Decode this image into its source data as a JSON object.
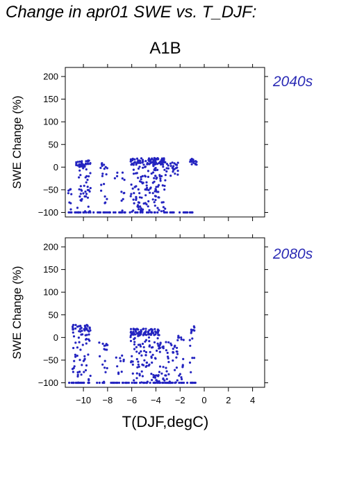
{
  "title": "Change in apr01 SWE vs. T_DJF:",
  "scenario": "A1B",
  "colors": {
    "points": "#2424c0",
    "period_label": "#2b2bb5",
    "axis": "#000000"
  },
  "chart_data": [
    {
      "type": "scatter",
      "panel_label": "2040s",
      "xlabel": "T(DJF,degC)",
      "ylabel": "SWE Change (%)",
      "xlim": [
        -11.5,
        5
      ],
      "ylim": [
        -110,
        220
      ],
      "xticks": [
        -10,
        -8,
        -6,
        -4,
        -2,
        0,
        2,
        4
      ],
      "yticks": [
        -100,
        -50,
        0,
        50,
        100,
        150,
        200
      ],
      "clusters": [
        {
          "x": [
            -11.3,
            -11.0
          ],
          "y": [
            -100,
            -40
          ],
          "n": 8
        },
        {
          "x": [
            -10.6,
            -9.4
          ],
          "y": [
            -100,
            15
          ],
          "n": 70
        },
        {
          "x": [
            -8.6,
            -8.0
          ],
          "y": [
            -100,
            10
          ],
          "n": 18
        },
        {
          "x": [
            -7.4,
            -6.6
          ],
          "y": [
            -100,
            -10
          ],
          "n": 12
        },
        {
          "x": [
            -6.1,
            -4.0
          ],
          "y": [
            -100,
            20
          ],
          "n": 150
        },
        {
          "x": [
            -4.1,
            -3.2
          ],
          "y": [
            -100,
            20
          ],
          "n": 70
        },
        {
          "x": [
            -3.2,
            -2.1
          ],
          "y": [
            -20,
            10
          ],
          "n": 25
        },
        {
          "x": [
            -1.2,
            -0.6
          ],
          "y": [
            5,
            20
          ],
          "n": 14
        }
      ],
      "floor_band": {
        "x": [
          -11.3,
          -0.6
        ],
        "y": -100,
        "n": 70
      }
    },
    {
      "type": "scatter",
      "panel_label": "2080s",
      "xlabel": "T(DJF,degC)",
      "ylabel": "SWE Change (%)",
      "xlim": [
        -11.5,
        5
      ],
      "ylim": [
        -110,
        220
      ],
      "xticks": [
        -10,
        -8,
        -6,
        -4,
        -2,
        0,
        2,
        4
      ],
      "yticks": [
        -100,
        -50,
        0,
        50,
        100,
        150,
        200
      ],
      "clusters": [
        {
          "x": [
            -10.9,
            -9.4
          ],
          "y": [
            -100,
            28
          ],
          "n": 80
        },
        {
          "x": [
            -8.7,
            -8.0
          ],
          "y": [
            -100,
            -10
          ],
          "n": 16
        },
        {
          "x": [
            -7.3,
            -6.6
          ],
          "y": [
            -100,
            -40
          ],
          "n": 10
        },
        {
          "x": [
            -6.1,
            -3.7
          ],
          "y": [
            -100,
            20
          ],
          "n": 170
        },
        {
          "x": [
            -3.8,
            -2.2
          ],
          "y": [
            -100,
            -10
          ],
          "n": 50
        },
        {
          "x": [
            -2.2,
            -1.7
          ],
          "y": [
            -100,
            5
          ],
          "n": 15
        },
        {
          "x": [
            -1.2,
            -0.8
          ],
          "y": [
            -100,
            25
          ],
          "n": 14
        }
      ],
      "floor_band": {
        "x": [
          -11.3,
          -0.6
        ],
        "y": -100,
        "n": 90
      }
    }
  ]
}
